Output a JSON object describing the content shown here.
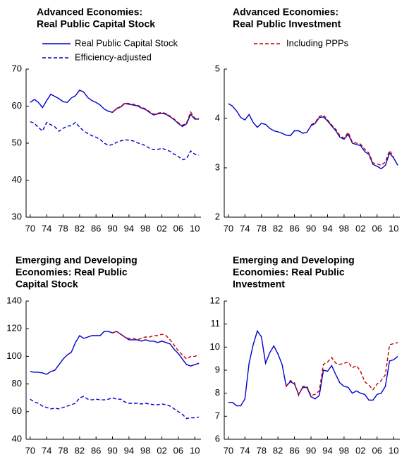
{
  "chart_data": [
    {
      "type": "line",
      "title": [
        "Advanced Economies:",
        "Real Public Capital Stock"
      ],
      "x": [
        1970,
        1971,
        1972,
        1973,
        1974,
        1975,
        1976,
        1977,
        1978,
        1979,
        1980,
        1981,
        1982,
        1983,
        1984,
        1985,
        1986,
        1987,
        1988,
        1989,
        1990,
        1991,
        1992,
        1993,
        1994,
        1995,
        1996,
        1997,
        1998,
        1999,
        2000,
        2001,
        2002,
        2003,
        2004,
        2005,
        2006,
        2007,
        2008,
        2009,
        2010,
        2011
      ],
      "xlim": [
        1969,
        2011.5
      ],
      "xticks": [
        {
          "value": 1970,
          "label": "70"
        },
        {
          "value": 1974,
          "label": "74"
        },
        {
          "value": 1978,
          "label": "78"
        },
        {
          "value": 1982,
          "label": "82"
        },
        {
          "value": 1986,
          "label": "86"
        },
        {
          "value": 1990,
          "label": "90"
        },
        {
          "value": 1994,
          "label": "94"
        },
        {
          "value": 1998,
          "label": "98"
        },
        {
          "value": 2002,
          "label": "02"
        },
        {
          "value": 2006,
          "label": "06"
        },
        {
          "value": 2010,
          "label": "10"
        }
      ],
      "ylim": [
        30,
        70
      ],
      "yticks": [
        30,
        40,
        50,
        60,
        70
      ],
      "series": [
        {
          "name": "Real Public Capital Stock",
          "color": "#0000cc",
          "style": "solid",
          "values": [
            61,
            61.8,
            61,
            59.6,
            61.5,
            63.2,
            62.6,
            62,
            61.2,
            61,
            62.2,
            62.8,
            64.3,
            63.8,
            62.3,
            61.5,
            61,
            60.3,
            59.2,
            58.6,
            58.3,
            59.3,
            59.8,
            60.7,
            60.5,
            60.3,
            60.1,
            59.5,
            59.1,
            58.3,
            57.6,
            57.9,
            58.1,
            57.8,
            57.1,
            56.3,
            55.3,
            54.5,
            55.2,
            57.8,
            56.5,
            56.5
          ]
        },
        {
          "name": "Efficiency-adjusted",
          "color": "#0000cc",
          "style": "dashed",
          "values": [
            55.8,
            55.4,
            54.2,
            53.3,
            55.6,
            55,
            54.4,
            53.2,
            54,
            54.6,
            54.7,
            55.6,
            54.3,
            53.3,
            52.6,
            52,
            51.6,
            51,
            50,
            49.4,
            49.6,
            50.2,
            50.6,
            50.9,
            50.8,
            50.6,
            50.1,
            49.8,
            49.3,
            48.6,
            48.2,
            48.3,
            48.6,
            48.2,
            47.8,
            47,
            46.4,
            45.5,
            45.8,
            47.9,
            47,
            46.8
          ]
        },
        {
          "color": "#c00000",
          "style": "dashed",
          "values": [
            null,
            null,
            null,
            null,
            null,
            null,
            null,
            null,
            null,
            null,
            null,
            null,
            null,
            null,
            null,
            null,
            null,
            null,
            null,
            null,
            58.4,
            59.4,
            59.9,
            60.8,
            60.7,
            60.5,
            60.3,
            59.7,
            59.3,
            58.5,
            57.8,
            58.1,
            58.3,
            58,
            57.3,
            56.5,
            55.5,
            54.8,
            55.5,
            58.4,
            56.7,
            56.6
          ]
        }
      ]
    },
    {
      "type": "line",
      "title": [
        "Advanced Economies:",
        "Real Public Investment"
      ],
      "x": [
        1970,
        1971,
        1972,
        1973,
        1974,
        1975,
        1976,
        1977,
        1978,
        1979,
        1980,
        1981,
        1982,
        1983,
        1984,
        1985,
        1986,
        1987,
        1988,
        1989,
        1990,
        1991,
        1992,
        1993,
        1994,
        1995,
        1996,
        1997,
        1998,
        1999,
        2000,
        2001,
        2002,
        2003,
        2004,
        2005,
        2006,
        2007,
        2008,
        2009,
        2010,
        2011
      ],
      "xlim": [
        1969,
        2011.5
      ],
      "xticks": [
        {
          "value": 1970,
          "label": "70"
        },
        {
          "value": 1974,
          "label": "74"
        },
        {
          "value": 1978,
          "label": "78"
        },
        {
          "value": 1982,
          "label": "82"
        },
        {
          "value": 1986,
          "label": "86"
        },
        {
          "value": 1990,
          "label": "90"
        },
        {
          "value": 1994,
          "label": "94"
        },
        {
          "value": 1998,
          "label": "98"
        },
        {
          "value": 2002,
          "label": "02"
        },
        {
          "value": 2006,
          "label": "06"
        },
        {
          "value": 2010,
          "label": "10"
        }
      ],
      "ylim": [
        2,
        5
      ],
      "yticks": [
        2,
        3,
        4,
        5
      ],
      "series": [
        {
          "color": "#0000cc",
          "style": "solid",
          "values": [
            4.3,
            4.25,
            4.15,
            4.02,
            3.97,
            4.08,
            3.92,
            3.82,
            3.9,
            3.88,
            3.8,
            3.75,
            3.73,
            3.7,
            3.66,
            3.65,
            3.75,
            3.75,
            3.7,
            3.72,
            3.85,
            3.9,
            4.02,
            4.03,
            3.95,
            3.85,
            3.75,
            3.62,
            3.58,
            3.68,
            3.5,
            3.47,
            3.45,
            3.33,
            3.27,
            3.07,
            3.03,
            2.98,
            3.05,
            3.3,
            3.2,
            3.05
          ]
        },
        {
          "name": "Including PPPs",
          "color": "#c00000",
          "style": "dashed",
          "values": [
            null,
            null,
            null,
            null,
            null,
            null,
            null,
            null,
            null,
            null,
            null,
            null,
            null,
            null,
            null,
            null,
            null,
            null,
            null,
            null,
            3.87,
            3.92,
            4.04,
            4.07,
            3.97,
            3.87,
            3.78,
            3.65,
            3.6,
            3.72,
            3.52,
            3.5,
            3.48,
            3.38,
            3.3,
            3.1,
            3.08,
            3.05,
            3.12,
            3.35,
            3.22,
            null
          ]
        }
      ]
    },
    {
      "type": "line",
      "title": [
        "Emerging and Developing",
        "Economies: Real Public",
        "Capital Stock"
      ],
      "x": [
        1970,
        1971,
        1972,
        1973,
        1974,
        1975,
        1976,
        1977,
        1978,
        1979,
        1980,
        1981,
        1982,
        1983,
        1984,
        1985,
        1986,
        1987,
        1988,
        1989,
        1990,
        1991,
        1992,
        1993,
        1994,
        1995,
        1996,
        1997,
        1998,
        1999,
        2000,
        2001,
        2002,
        2003,
        2004,
        2005,
        2006,
        2007,
        2008,
        2009,
        2010,
        2011
      ],
      "xlim": [
        1969,
        2011.5
      ],
      "xticks": [
        {
          "value": 1970,
          "label": "70"
        },
        {
          "value": 1974,
          "label": "74"
        },
        {
          "value": 1978,
          "label": "78"
        },
        {
          "value": 1982,
          "label": "82"
        },
        {
          "value": 1986,
          "label": "86"
        },
        {
          "value": 1990,
          "label": "90"
        },
        {
          "value": 1994,
          "label": "94"
        },
        {
          "value": 1998,
          "label": "98"
        },
        {
          "value": 2002,
          "label": "02"
        },
        {
          "value": 2006,
          "label": "06"
        },
        {
          "value": 2010,
          "label": "10"
        }
      ],
      "ylim": [
        40,
        140
      ],
      "yticks": [
        40,
        60,
        80,
        100,
        120,
        140
      ],
      "series": [
        {
          "color": "#0000cc",
          "style": "solid",
          "values": [
            89,
            88.5,
            88.5,
            88,
            87,
            89,
            90,
            94,
            98,
            101,
            103,
            110,
            115,
            113,
            114,
            115,
            115,
            115,
            118,
            118,
            117,
            118,
            116,
            114,
            112,
            112,
            112,
            111,
            112,
            111,
            111,
            110,
            111,
            110,
            109,
            105,
            102,
            98,
            94,
            93,
            94,
            95
          ]
        },
        {
          "color": "#c00000",
          "style": "dashed",
          "values": [
            null,
            null,
            null,
            null,
            null,
            null,
            null,
            null,
            null,
            null,
            null,
            null,
            null,
            null,
            null,
            null,
            null,
            null,
            null,
            null,
            117,
            118,
            116,
            114,
            113,
            113,
            112,
            113,
            114,
            114,
            115,
            115,
            116,
            115,
            112,
            108,
            104,
            101,
            98,
            100,
            100,
            101
          ]
        },
        {
          "color": "#0000cc",
          "style": "dashed",
          "values": [
            69,
            67,
            66,
            64,
            63,
            62,
            62.5,
            62,
            63,
            64,
            65,
            66,
            70,
            71,
            69,
            68.5,
            69,
            68.5,
            68.5,
            69,
            70,
            69,
            69,
            67,
            66,
            66,
            66,
            65.5,
            66,
            65.5,
            65,
            65,
            65.5,
            65,
            64,
            62,
            60,
            58,
            55,
            55.5,
            55.5,
            56
          ]
        }
      ]
    },
    {
      "type": "line",
      "title": [
        "Emerging and Developing",
        "Economies: Real Public",
        "Investment"
      ],
      "x": [
        1970,
        1971,
        1972,
        1973,
        1974,
        1975,
        1976,
        1977,
        1978,
        1979,
        1980,
        1981,
        1982,
        1983,
        1984,
        1985,
        1986,
        1987,
        1988,
        1989,
        1990,
        1991,
        1992,
        1993,
        1994,
        1995,
        1996,
        1997,
        1998,
        1999,
        2000,
        2001,
        2002,
        2003,
        2004,
        2005,
        2006,
        2007,
        2008,
        2009,
        2010,
        2011
      ],
      "xlim": [
        1969,
        2011.5
      ],
      "xticks": [
        {
          "value": 1970,
          "label": "70"
        },
        {
          "value": 1974,
          "label": "74"
        },
        {
          "value": 1978,
          "label": "78"
        },
        {
          "value": 1982,
          "label": "82"
        },
        {
          "value": 1986,
          "label": "86"
        },
        {
          "value": 1990,
          "label": "90"
        },
        {
          "value": 1994,
          "label": "94"
        },
        {
          "value": 1998,
          "label": "98"
        },
        {
          "value": 2002,
          "label": "02"
        },
        {
          "value": 2006,
          "label": "06"
        },
        {
          "value": 2010,
          "label": "10"
        }
      ],
      "ylim": [
        6,
        12
      ],
      "yticks": [
        6,
        7,
        8,
        9,
        10,
        11,
        12
      ],
      "series": [
        {
          "color": "#0000cc",
          "style": "solid",
          "values": [
            7.6,
            7.6,
            7.45,
            7.45,
            7.75,
            9.3,
            10.1,
            10.7,
            10.45,
            9.3,
            9.75,
            10.05,
            9.7,
            9.25,
            8.3,
            8.5,
            8.4,
            7.95,
            8.25,
            8.25,
            7.85,
            7.75,
            7.9,
            9.0,
            8.95,
            9.2,
            8.8,
            8.45,
            8.3,
            8.25,
            8.0,
            8.1,
            8.0,
            7.95,
            7.7,
            7.7,
            7.95,
            8.0,
            8.3,
            9.4,
            9.45,
            9.6
          ]
        },
        {
          "color": "#c00000",
          "style": "dashed",
          "values": [
            null,
            null,
            null,
            null,
            null,
            null,
            null,
            null,
            null,
            null,
            null,
            null,
            null,
            null,
            8.3,
            8.55,
            8.45,
            7.9,
            8.3,
            8.3,
            7.9,
            7.95,
            8.1,
            9.25,
            9.35,
            9.55,
            9.3,
            9.25,
            9.3,
            9.35,
            9.1,
            9.2,
            8.95,
            8.5,
            8.35,
            8.15,
            8.4,
            8.55,
            8.8,
            10.1,
            10.15,
            10.2
          ]
        }
      ]
    }
  ]
}
